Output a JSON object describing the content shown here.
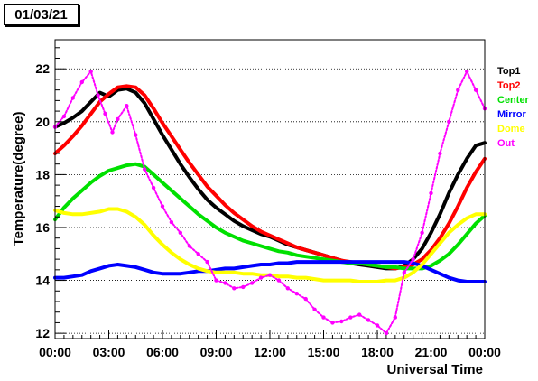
{
  "window_title": "01/03/21",
  "chart_data": {
    "type": "line",
    "title": "01/03/21",
    "xlabel": "Universal Time",
    "ylabel": "Temperature(degree)",
    "x_unit": "hours",
    "xlim": [
      0,
      24
    ],
    "ylim": [
      11.8,
      23.1
    ],
    "x_ticks": [
      0,
      3,
      6,
      9,
      12,
      15,
      18,
      21,
      24
    ],
    "x_tick_labels": [
      "00:00",
      "03:00",
      "06:00",
      "09:00",
      "12:00",
      "15:00",
      "18:00",
      "21:00",
      "00:00"
    ],
    "y_ticks": [
      12,
      14,
      16,
      18,
      20,
      22
    ],
    "y_tick_labels": [
      "12",
      "14",
      "16",
      "18",
      "20",
      "22"
    ],
    "grid": "horizontal dotted",
    "legend_position": "right",
    "series": [
      {
        "name": "Top1",
        "color": "#000000",
        "x": [
          0,
          0.5,
          1,
          1.5,
          2,
          2.5,
          3,
          3.5,
          4,
          4.5,
          5,
          5.5,
          6,
          6.5,
          7,
          7.5,
          8,
          8.5,
          9,
          9.5,
          10,
          10.5,
          11,
          11.5,
          12,
          12.5,
          13,
          13.5,
          14,
          14.5,
          15,
          15.5,
          16,
          16.5,
          17,
          17.5,
          18,
          18.5,
          19,
          19.5,
          20,
          20.5,
          21,
          21.5,
          22,
          22.5,
          23,
          23.5,
          24
        ],
        "values": [
          19.8,
          19.95,
          20.15,
          20.4,
          20.75,
          21.1,
          20.95,
          21.2,
          21.25,
          21.1,
          20.7,
          20.1,
          19.5,
          18.95,
          18.4,
          17.9,
          17.45,
          17.05,
          16.75,
          16.5,
          16.25,
          16.05,
          15.9,
          15.75,
          15.65,
          15.5,
          15.35,
          15.25,
          15.15,
          15.05,
          14.95,
          14.85,
          14.75,
          14.65,
          14.6,
          14.55,
          14.5,
          14.45,
          14.45,
          14.55,
          14.8,
          15.2,
          15.8,
          16.5,
          17.3,
          18.0,
          18.6,
          19.1,
          19.2
        ]
      },
      {
        "name": "Top2",
        "color": "#ff0000",
        "x": [
          0,
          0.5,
          1,
          1.5,
          2,
          2.5,
          3,
          3.5,
          4,
          4.5,
          5,
          5.5,
          6,
          6.5,
          7,
          7.5,
          8,
          8.5,
          9,
          9.5,
          10,
          10.5,
          11,
          11.5,
          12,
          12.5,
          13,
          13.5,
          14,
          14.5,
          15,
          15.5,
          16,
          16.5,
          17,
          17.5,
          18,
          18.5,
          19,
          19.5,
          20,
          20.5,
          21,
          21.5,
          22,
          22.5,
          23,
          23.5,
          24
        ],
        "values": [
          18.8,
          19.1,
          19.45,
          19.85,
          20.3,
          20.75,
          21.05,
          21.3,
          21.35,
          21.3,
          21.0,
          20.5,
          19.95,
          19.45,
          18.95,
          18.45,
          18.0,
          17.55,
          17.2,
          16.85,
          16.55,
          16.3,
          16.05,
          15.85,
          15.7,
          15.55,
          15.4,
          15.25,
          15.15,
          15.05,
          14.95,
          14.85,
          14.75,
          14.7,
          14.65,
          14.6,
          14.55,
          14.5,
          14.45,
          14.5,
          14.6,
          14.8,
          15.15,
          15.6,
          16.15,
          16.8,
          17.5,
          18.1,
          18.6
        ]
      },
      {
        "name": "Center",
        "color": "#00e000",
        "x": [
          0,
          0.5,
          1,
          1.5,
          2,
          2.5,
          3,
          3.5,
          4,
          4.5,
          5,
          5.5,
          6,
          6.5,
          7,
          7.5,
          8,
          8.5,
          9,
          9.5,
          10,
          10.5,
          11,
          11.5,
          12,
          12.5,
          13,
          13.5,
          14,
          14.5,
          15,
          15.5,
          16,
          16.5,
          17,
          17.5,
          18,
          18.5,
          19,
          19.5,
          20,
          20.5,
          21,
          21.5,
          22,
          22.5,
          23,
          23.5,
          24
        ],
        "values": [
          16.3,
          16.75,
          17.1,
          17.4,
          17.7,
          17.95,
          18.15,
          18.25,
          18.35,
          18.4,
          18.3,
          18.0,
          17.7,
          17.4,
          17.1,
          16.8,
          16.5,
          16.25,
          16.0,
          15.8,
          15.65,
          15.5,
          15.4,
          15.3,
          15.2,
          15.1,
          15.05,
          14.95,
          14.9,
          14.85,
          14.8,
          14.75,
          14.7,
          14.65,
          14.65,
          14.6,
          14.55,
          14.5,
          14.5,
          14.45,
          14.45,
          14.45,
          14.55,
          14.75,
          15.0,
          15.35,
          15.75,
          16.15,
          16.45
        ]
      },
      {
        "name": "Mirror",
        "color": "#0000ff",
        "x": [
          0,
          0.5,
          1,
          1.5,
          2,
          2.5,
          3,
          3.5,
          4,
          4.5,
          5,
          5.5,
          6,
          6.5,
          7,
          7.5,
          8,
          8.5,
          9,
          9.5,
          10,
          10.5,
          11,
          11.5,
          12,
          12.5,
          13,
          13.5,
          14,
          14.5,
          15,
          15.5,
          16,
          16.5,
          17,
          17.5,
          18,
          18.5,
          19,
          19.5,
          20,
          20.5,
          21,
          21.5,
          22,
          22.5,
          23,
          23.5,
          24
        ],
        "values": [
          14.1,
          14.1,
          14.15,
          14.2,
          14.35,
          14.45,
          14.55,
          14.6,
          14.55,
          14.5,
          14.4,
          14.3,
          14.25,
          14.25,
          14.25,
          14.3,
          14.35,
          14.35,
          14.4,
          14.45,
          14.45,
          14.5,
          14.55,
          14.6,
          14.6,
          14.65,
          14.65,
          14.7,
          14.7,
          14.7,
          14.7,
          14.7,
          14.7,
          14.7,
          14.7,
          14.7,
          14.7,
          14.7,
          14.7,
          14.7,
          14.65,
          14.55,
          14.4,
          14.25,
          14.1,
          14.0,
          13.95,
          13.95,
          13.95
        ]
      },
      {
        "name": "Dome",
        "color": "#ffff00",
        "x": [
          0,
          0.5,
          1,
          1.5,
          2,
          2.5,
          3,
          3.5,
          4,
          4.5,
          5,
          5.5,
          6,
          6.5,
          7,
          7.5,
          8,
          8.5,
          9,
          9.5,
          10,
          10.5,
          11,
          11.5,
          12,
          12.5,
          13,
          13.5,
          14,
          14.5,
          15,
          15.5,
          16,
          16.5,
          17,
          17.5,
          18,
          18.5,
          19,
          19.5,
          20,
          20.5,
          21,
          21.5,
          22,
          22.5,
          23,
          23.5,
          24
        ],
        "values": [
          16.65,
          16.55,
          16.5,
          16.5,
          16.55,
          16.6,
          16.7,
          16.7,
          16.6,
          16.4,
          16.1,
          15.7,
          15.35,
          15.05,
          14.8,
          14.6,
          14.45,
          14.35,
          14.3,
          14.3,
          14.3,
          14.25,
          14.25,
          14.2,
          14.2,
          14.15,
          14.15,
          14.1,
          14.1,
          14.05,
          14.0,
          14.0,
          14.0,
          14.0,
          13.95,
          13.95,
          13.95,
          14.0,
          14.0,
          14.1,
          14.3,
          14.6,
          15.0,
          15.4,
          15.8,
          16.1,
          16.35,
          16.5,
          16.5
        ]
      },
      {
        "name": "Out",
        "color": "#ff00ff",
        "x": [
          0,
          0.5,
          1,
          1.5,
          2,
          2.4,
          2.8,
          3.2,
          3.5,
          4,
          4.5,
          5,
          5.5,
          6,
          6.5,
          7,
          7.5,
          8,
          8.5,
          9,
          9.5,
          10,
          10.5,
          11,
          11.5,
          12,
          12.5,
          13,
          13.5,
          14,
          14.5,
          15,
          15.5,
          16,
          16.5,
          17,
          17.5,
          18,
          18.5,
          19,
          19.5,
          20,
          20.5,
          21,
          21.5,
          22,
          22.5,
          23,
          23.5,
          24
        ],
        "values": [
          19.8,
          20.2,
          20.9,
          21.5,
          21.9,
          21.0,
          20.3,
          19.6,
          20.1,
          20.6,
          19.5,
          18.2,
          17.5,
          16.8,
          16.2,
          15.8,
          15.3,
          15.0,
          14.7,
          14.0,
          13.9,
          13.7,
          13.75,
          13.9,
          14.1,
          14.2,
          14.0,
          13.7,
          13.5,
          13.3,
          12.9,
          12.6,
          12.4,
          12.45,
          12.6,
          12.7,
          12.5,
          12.3,
          12.0,
          12.6,
          14.3,
          14.8,
          15.8,
          17.3,
          18.8,
          20.0,
          21.2,
          21.9,
          21.2,
          20.5
        ]
      }
    ]
  }
}
